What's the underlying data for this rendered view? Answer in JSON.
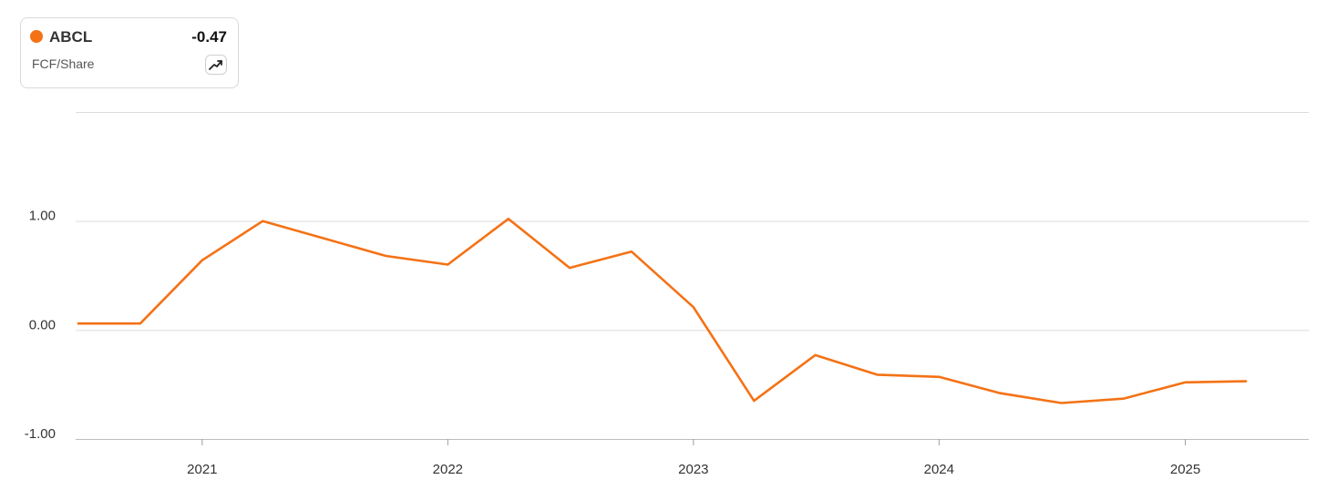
{
  "legend": {
    "ticker": "ABCL",
    "value": "-0.47",
    "metric": "FCF/Share",
    "color": "#f47216",
    "trend_icon": "trend-up-icon"
  },
  "chart_data": {
    "type": "line",
    "title": "",
    "xlabel": "",
    "ylabel": "",
    "x_ticks": [
      "2021",
      "2022",
      "2023",
      "2024",
      "2025"
    ],
    "y_ticks": [
      "1.00",
      "0.00",
      "-1.00"
    ],
    "ylim": [
      -1.0,
      2.0
    ],
    "grid": true,
    "series": [
      {
        "name": "ABCL",
        "color": "#f47216",
        "x": [
          "2020-07-01",
          "2020-10-01",
          "2021-01-01",
          "2021-04-01",
          "2021-07-01",
          "2021-10-01",
          "2022-01-01",
          "2022-04-01",
          "2022-07-01",
          "2022-10-01",
          "2023-01-01",
          "2023-04-01",
          "2023-07-01",
          "2023-10-01",
          "2024-01-01",
          "2024-04-01",
          "2024-07-01",
          "2024-10-01",
          "2025-01-01",
          "2025-04-01"
        ],
        "values": [
          0.06,
          0.06,
          0.64,
          1.0,
          0.84,
          0.68,
          0.6,
          1.02,
          0.57,
          0.72,
          0.21,
          -0.65,
          -0.23,
          -0.41,
          -0.43,
          -0.58,
          -0.67,
          -0.63,
          -0.48,
          -0.47
        ]
      }
    ]
  }
}
